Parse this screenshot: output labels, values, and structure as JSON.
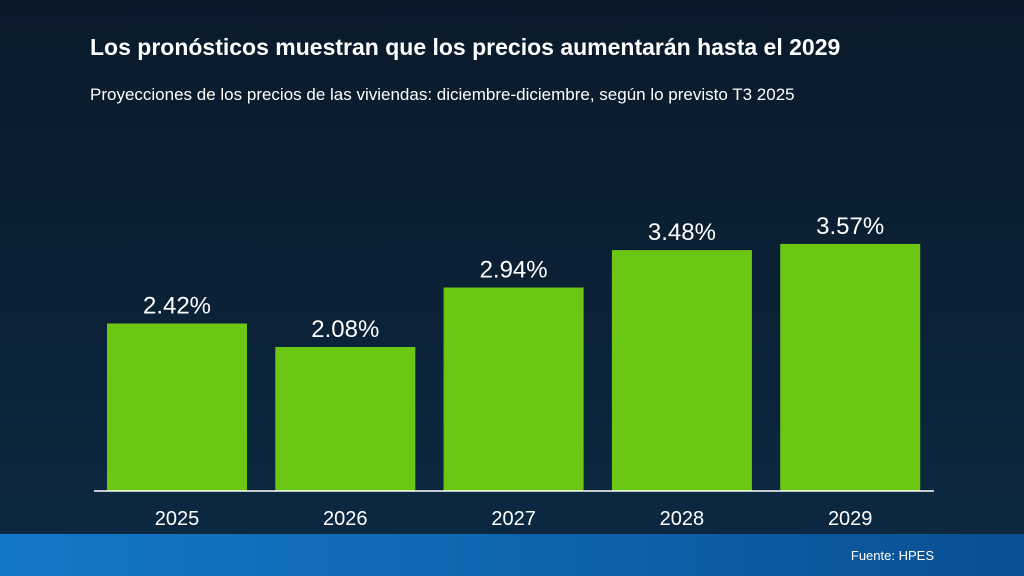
{
  "chart_data": {
    "type": "bar",
    "title": "Los pronósticos muestran que los precios aumentarán hasta el 2029",
    "subtitle": "Proyecciones de los precios de las viviendas: diciembre-diciembre, según lo previsto T3 2025",
    "categories": [
      "2025",
      "2026",
      "2027",
      "2028",
      "2029"
    ],
    "values": [
      2.42,
      2.08,
      2.94,
      3.48,
      3.57
    ],
    "value_labels": [
      "2.42%",
      "2.08%",
      "2.94%",
      "3.48%",
      "3.57%"
    ],
    "xlabel": "",
    "ylabel": "",
    "ylim": [
      0,
      5.1
    ],
    "grid": false,
    "bar_color": "#6cc714",
    "axis_color": "#ffffff"
  },
  "footer": {
    "source": "Fuente: HPES"
  }
}
